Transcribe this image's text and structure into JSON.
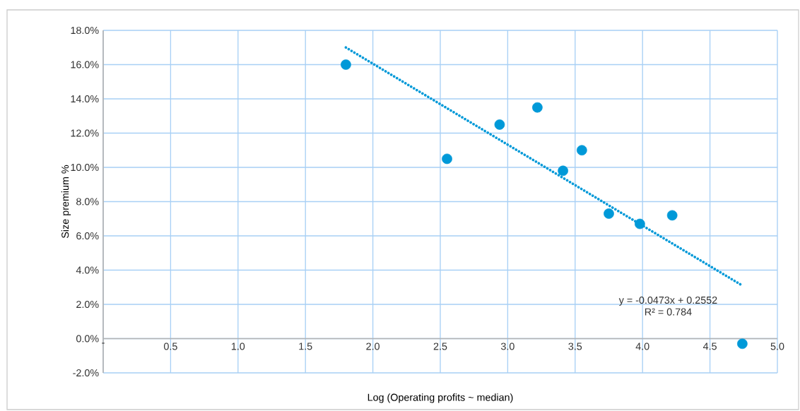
{
  "chart_data": {
    "type": "scatter",
    "xlabel": "Log (Operating profits ~ median)",
    "ylabel": "Size premium %",
    "xlim": [
      0,
      5
    ],
    "ylim": [
      -0.02,
      0.18
    ],
    "xticks": [
      {
        "value": 0,
        "label": "-"
      },
      0.5,
      {
        "value": 1,
        "label": "1.0"
      },
      1.5,
      {
        "value": 2,
        "label": "2.0"
      },
      2.5,
      {
        "value": 3,
        "label": "3.0"
      },
      3.5,
      {
        "value": 4,
        "label": "4.0"
      },
      4.5,
      {
        "value": 5,
        "label": "5.0"
      }
    ],
    "yticks": [
      {
        "value": -0.02,
        "label": "-2.0%"
      },
      {
        "value": 0,
        "label": "0.0%"
      },
      {
        "value": 0.02,
        "label": "2.0%"
      },
      {
        "value": 0.04,
        "label": "4.0%"
      },
      {
        "value": 0.06,
        "label": "6.0%"
      },
      {
        "value": 0.08,
        "label": "8.0%"
      },
      {
        "value": 0.1,
        "label": "10.0%"
      },
      {
        "value": 0.12,
        "label": "12.0%"
      },
      {
        "value": 0.14,
        "label": "14.0%"
      },
      {
        "value": 0.16,
        "label": "16.0%"
      },
      {
        "value": 0.18,
        "label": "18.0%"
      }
    ],
    "grid": true,
    "annotations": [
      "y = -0.0473x + 0.2552",
      "R² = 0.784"
    ],
    "series": [
      {
        "type": "scatter",
        "marker": "circle",
        "color": "#0099d8",
        "x": [
          1.8,
          2.55,
          2.94,
          3.22,
          3.41,
          3.55,
          3.75,
          3.98,
          4.22,
          4.74
        ],
        "values": [
          0.16,
          0.105,
          0.125,
          0.135,
          0.098,
          0.11,
          0.073,
          0.067,
          0.072,
          -0.003
        ]
      },
      {
        "type": "line",
        "marker": "none",
        "line_style": "dotted",
        "color": "#0099d8",
        "x": [
          1.8,
          4.74
        ],
        "values": [
          0.17,
          0.031
        ]
      }
    ]
  }
}
